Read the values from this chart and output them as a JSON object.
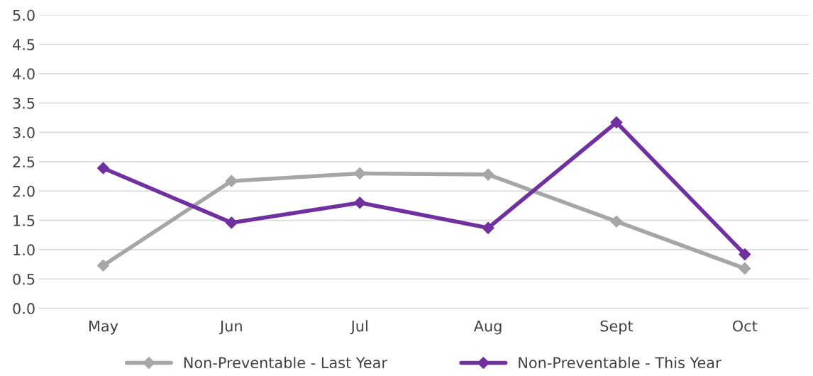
{
  "chart_data": {
    "type": "line",
    "categories": [
      "May",
      "Jun",
      "Jul",
      "Aug",
      "Sept",
      "Oct"
    ],
    "series": [
      {
        "name": "Non-Preventable - Last Year",
        "color": "#a6a6a6",
        "values": [
          0.73,
          2.17,
          2.3,
          2.28,
          1.48,
          0.68
        ]
      },
      {
        "name": "Non-Preventable - This Year",
        "color": "#7030a0",
        "values": [
          2.39,
          1.46,
          1.8,
          1.37,
          3.17,
          0.92
        ]
      }
    ],
    "ylim": [
      0,
      5
    ],
    "yticks": [
      {
        "value": 0,
        "label": "0.0"
      },
      {
        "value": 0.5,
        "label": "0.5"
      },
      {
        "value": 1,
        "label": "1.0"
      },
      {
        "value": 1.5,
        "label": "1.5"
      },
      {
        "value": 2,
        "label": "2.0"
      },
      {
        "value": 2.5,
        "label": "2.5"
      },
      {
        "value": 3,
        "label": "3.0"
      },
      {
        "value": 3.5,
        "label": "3.5"
      },
      {
        "value": 4,
        "label": "4.0"
      },
      {
        "value": 4.5,
        "label": "4.5"
      },
      {
        "value": 5,
        "label": "5.0"
      }
    ],
    "grid": "y",
    "legend": "bottom",
    "marker": "diamond",
    "line_style": "solid"
  }
}
